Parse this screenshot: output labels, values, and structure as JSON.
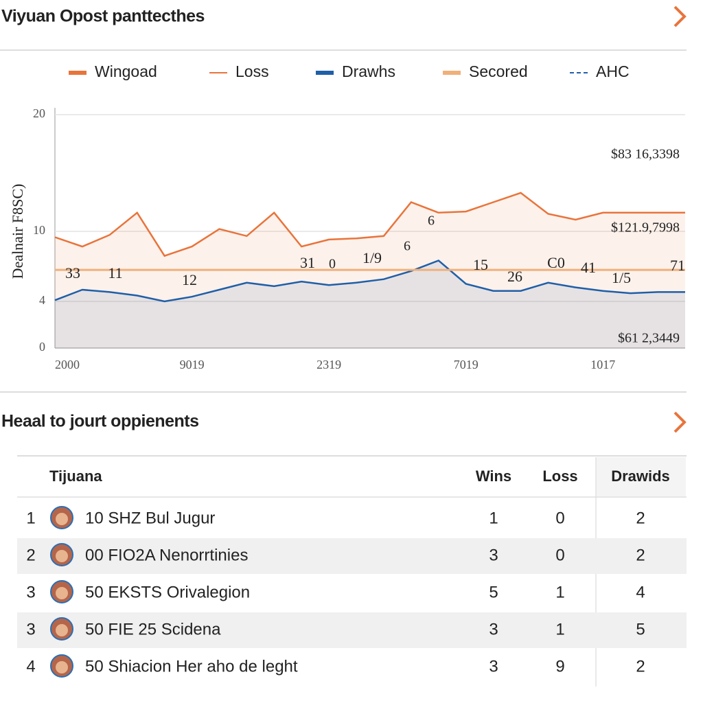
{
  "header": {
    "title": "Viyuan Opost panttecthes"
  },
  "chart_data": {
    "type": "line",
    "y_label": "Dealnair F8SC)",
    "categories": [
      "2000",
      null,
      null,
      null,
      null,
      "9019",
      null,
      null,
      null,
      null,
      "2319",
      null,
      null,
      null,
      null,
      "7019",
      null,
      null,
      null,
      null,
      "1017",
      null,
      null,
      null
    ],
    "ylim": [
      0,
      20
    ],
    "yticks": [
      0,
      4,
      10,
      20
    ],
    "grid": true,
    "series": [
      {
        "name": "Wingoad",
        "color": "#e8743b",
        "fill": true,
        "values": [
          9.5,
          8.7,
          9.7,
          11.6,
          7.9,
          8.7,
          10.2,
          9.6,
          11.6,
          8.7,
          9.3,
          9.4,
          9.6,
          12.5,
          11.6,
          11.7,
          12.5,
          13.3,
          11.5,
          11.0,
          11.6,
          11.6,
          11.6,
          11.6
        ]
      },
      {
        "name": "Loss",
        "color": "#e8743b"
      },
      {
        "name": "Drawhs",
        "color": "#1f5fa8",
        "fill": true,
        "values": [
          4.1,
          5.0,
          4.8,
          4.5,
          4.0,
          4.4,
          5.0,
          5.6,
          5.3,
          5.7,
          5.4,
          5.6,
          5.9,
          6.6,
          7.5,
          5.5,
          4.9,
          4.9,
          5.6,
          5.2,
          4.9,
          4.7,
          4.8,
          4.8
        ]
      },
      {
        "name": "Secored",
        "color": "#f0b07a",
        "values": [
          6.7,
          6.7,
          6.7,
          6.7,
          6.7,
          6.7,
          6.7,
          6.7,
          6.7,
          6.7,
          6.7,
          6.7,
          6.7,
          6.7,
          6.7,
          6.7,
          6.7,
          6.7,
          6.7,
          6.7,
          6.7,
          6.7,
          6.7,
          6.7
        ]
      },
      {
        "name": "AHC",
        "color": "#1f5fa8",
        "dashed": true
      }
    ],
    "annotations": [
      "$83 16,3398",
      "$121.9,7998",
      "$61 2,3449",
      "33",
      "11",
      "12",
      "31",
      "0",
      "1/9",
      "6",
      "6",
      "15",
      "26",
      "C0",
      "41",
      "1/5",
      "71"
    ]
  },
  "table": {
    "title": "Heaal to jourt oppienents",
    "header": [
      "Tijuana",
      "Wins",
      "Loss",
      "Drawids"
    ],
    "rows": [
      [
        "1",
        "10 SHZ Bul Jugur",
        "1",
        "0",
        "2"
      ],
      [
        "2",
        "00 FIO2A Nenorrtinies",
        "3",
        "0",
        "2"
      ],
      [
        "3",
        "50 EKSTS Orivalegion",
        "5",
        "1",
        "4"
      ],
      [
        "3",
        "50 FIE 25 Scidena",
        "3",
        "1",
        "5"
      ],
      [
        "4",
        "50 Shiacion Her aho de leght",
        "3",
        "9",
        "2"
      ]
    ]
  }
}
